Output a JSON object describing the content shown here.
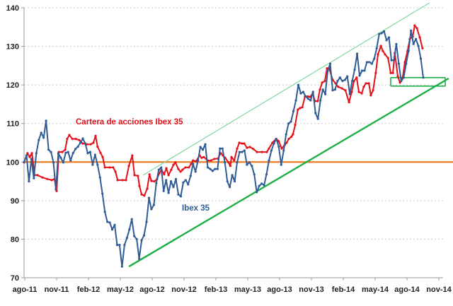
{
  "chart_data": {
    "type": "line",
    "title": "",
    "xlabel": "",
    "ylabel": "",
    "x_unit": "weeks since ago-11",
    "ylim": [
      70,
      140
    ],
    "xlim_weeks": [
      0,
      171
    ],
    "y_ticks": [
      70,
      80,
      90,
      100,
      110,
      120,
      130,
      140
    ],
    "x_ticks": [
      {
        "label": "ago-11",
        "month": 0
      },
      {
        "label": "nov-11",
        "month": 3
      },
      {
        "label": "feb-12",
        "month": 6
      },
      {
        "label": "may-12",
        "month": 9
      },
      {
        "label": "ago-12",
        "month": 12
      },
      {
        "label": "nov-12",
        "month": 15
      },
      {
        "label": "feb-13",
        "month": 18
      },
      {
        "label": "may-13",
        "month": 21
      },
      {
        "label": "ago-13",
        "month": 24
      },
      {
        "label": "nov-13",
        "month": 27
      },
      {
        "label": "feb-14",
        "month": 30
      },
      {
        "label": "may-14",
        "month": 33
      },
      {
        "label": "ago-14",
        "month": 36
      },
      {
        "label": "nov-14",
        "month": 39
      }
    ],
    "grid": "horizontal dotted",
    "colors": {
      "ibex": "#2F5C97",
      "cartera": "#E3101A",
      "base": "#F07B22",
      "support": "#1EAF45",
      "resistance": "#7ED89A",
      "box": "#1EAF45"
    },
    "series": [
      {
        "name": "Ibex 35",
        "label": "Ibex 35",
        "weekly_values": [
          100,
          101.7,
          95,
          100.8,
          95.8,
          102.3,
          105.7,
          107.6,
          106.3,
          110.7,
          103.2,
          102.6,
          99.9,
          92.9,
          102.3,
          101.1,
          99.9,
          102.4,
          102.6,
          100.4,
          102.3,
          103.4,
          104,
          105,
          106.1,
          104.8,
          102.3,
          102.6,
          99.3,
          101.9,
          99.3,
          96,
          91.8,
          87.1,
          84.5,
          84.3,
          82.5,
          83.7,
          78.5,
          78.5,
          72.9,
          78.5,
          80.3,
          82.5,
          85.2,
          80.8,
          80,
          74.9,
          79.7,
          81,
          84.5,
          90.7,
          87.8,
          88.9,
          94.5,
          98,
          98.6,
          92.5,
          95.3,
          92,
          95,
          93.5,
          95.6,
          91.6,
          91.1,
          94.7,
          95.3,
          94.2,
          96.4,
          99.5,
          97.5,
          100.4,
          103.9,
          103.2,
          104.6,
          98.6,
          98.2,
          97.7,
          98.2,
          98.2,
          103.5,
          103.5,
          99.9,
          95,
          93.5,
          96.6,
          95,
          99.9,
          102.6,
          102.6,
          103,
          99.3,
          99.9,
          99,
          96.8,
          92.2,
          93.8,
          94.4,
          94,
          96.8,
          100.4,
          103,
          104.8,
          106,
          104,
          99.3,
          103,
          107.2,
          110,
          110.5,
          113.2,
          116,
          120,
          117.8,
          118.2,
          117,
          116.4,
          116,
          118.2,
          112.7,
          111.2,
          116,
          118.8,
          117.6,
          123.7,
          125.5,
          118.6,
          118.8,
          121,
          121.9,
          121,
          121.3,
          122.2,
          117.6,
          121,
          124,
          128.1,
          122.4,
          123.7,
          123.7,
          125.9,
          125.9,
          125.5,
          126.8,
          129.5,
          133.2,
          133.4,
          133.9,
          131.6,
          132.3,
          126.4,
          126.4,
          130.6,
          125.5,
          121,
          121.9,
          125.5,
          128.8,
          134.1,
          130.6,
          131.9,
          130.1,
          126.8,
          121.9
        ]
      },
      {
        "name": "Cartera de acciones Ibex 35",
        "label": "Cartera de acciones Ibex 35",
        "points": [
          [
            0,
            99.9
          ],
          [
            1.4,
            102.3
          ],
          [
            2.3,
            101.3
          ],
          [
            3.2,
            102.3
          ],
          [
            4.3,
            96.6
          ],
          [
            5.5,
            96.6
          ],
          [
            7.5,
            96
          ],
          [
            9.5,
            95.6
          ],
          [
            11.3,
            95.3
          ],
          [
            12.4,
            95.6
          ],
          [
            13.3,
            92.5
          ],
          [
            14.2,
            102.6
          ],
          [
            15.6,
            102.6
          ],
          [
            16.8,
            103.2
          ],
          [
            17.6,
            106
          ],
          [
            18.5,
            107
          ],
          [
            19.7,
            106
          ],
          [
            21.1,
            106
          ],
          [
            22.5,
            105.7
          ],
          [
            24,
            104.8
          ],
          [
            25.7,
            104.6
          ],
          [
            27.2,
            104.6
          ],
          [
            28.3,
            105
          ],
          [
            29.2,
            106.8
          ],
          [
            30,
            104
          ],
          [
            31.2,
            102.4
          ],
          [
            32.1,
            101.3
          ],
          [
            33,
            98.6
          ],
          [
            35,
            98.6
          ],
          [
            36.4,
            98.6
          ],
          [
            37.3,
            97.5
          ],
          [
            38.2,
            95.3
          ],
          [
            40.2,
            95.3
          ],
          [
            41.6,
            95.3
          ],
          [
            42.8,
            99
          ],
          [
            44.2,
            101.7
          ],
          [
            45.1,
            96.6
          ],
          [
            46.5,
            96.4
          ],
          [
            47.1,
            93.8
          ],
          [
            48,
            91.6
          ],
          [
            49.1,
            91.3
          ],
          [
            50.3,
            93.1
          ],
          [
            51.2,
            96.8
          ],
          [
            52,
            95.1
          ],
          [
            53.2,
            95
          ],
          [
            54.3,
            95.6
          ],
          [
            55.2,
            97.1
          ],
          [
            56.1,
            98
          ],
          [
            57.2,
            96.8
          ],
          [
            58.1,
            98.4
          ],
          [
            59,
            96.6
          ],
          [
            60.1,
            98
          ],
          [
            61,
            99.3
          ],
          [
            61.8,
            99.9
          ],
          [
            63,
            98.2
          ],
          [
            63.9,
            97.5
          ],
          [
            64.7,
            98
          ],
          [
            65.9,
            98.6
          ],
          [
            67.3,
            98.6
          ],
          [
            68.2,
            99.5
          ],
          [
            69,
            100.4
          ],
          [
            70.2,
            100.2
          ],
          [
            71.7,
            101.7
          ],
          [
            72.5,
            101.1
          ],
          [
            73.4,
            101.3
          ],
          [
            74.9,
            100.4
          ],
          [
            76.3,
            100.4
          ],
          [
            77.7,
            100.8
          ],
          [
            79.2,
            100.9
          ],
          [
            80.3,
            102.3
          ],
          [
            81.2,
            101.7
          ],
          [
            82.1,
            101.1
          ],
          [
            83.5,
            99.9
          ],
          [
            84.2,
            99
          ],
          [
            84.7,
            101.3
          ],
          [
            85.8,
            100.4
          ],
          [
            87,
            103.5
          ],
          [
            87.9,
            105
          ],
          [
            89,
            104.8
          ],
          [
            89.9,
            104.8
          ],
          [
            91,
            103.7
          ],
          [
            92.2,
            103.9
          ],
          [
            93.6,
            103.4
          ],
          [
            95.1,
            102.6
          ],
          [
            97.1,
            102.6
          ],
          [
            99.1,
            102.6
          ],
          [
            100,
            103.5
          ],
          [
            101.4,
            105
          ],
          [
            102.9,
            106
          ],
          [
            104,
            105.4
          ],
          [
            105.2,
            103.5
          ],
          [
            106.4,
            104.4
          ],
          [
            107.2,
            105
          ],
          [
            108.1,
            106
          ],
          [
            109.2,
            106.6
          ],
          [
            109.8,
            107.2
          ],
          [
            110.7,
            109.6
          ],
          [
            111.8,
            113.6
          ],
          [
            112.7,
            114
          ],
          [
            113.6,
            114.2
          ],
          [
            114.7,
            117
          ],
          [
            115.9,
            117
          ],
          [
            116.8,
            116.9
          ],
          [
            117.9,
            117.8
          ],
          [
            118.8,
            115.8
          ],
          [
            119.9,
            115.8
          ],
          [
            120.8,
            118.8
          ],
          [
            121.7,
            120.6
          ],
          [
            122.8,
            121
          ],
          [
            123.7,
            124.3
          ],
          [
            124.6,
            124.3
          ],
          [
            126,
            121.3
          ],
          [
            127.2,
            120.4
          ],
          [
            128.3,
            119.5
          ],
          [
            129.8,
            119.1
          ],
          [
            131.2,
            118.6
          ],
          [
            132.7,
            115.5
          ],
          [
            133.8,
            118.2
          ],
          [
            134.7,
            121
          ],
          [
            135.8,
            121.9
          ],
          [
            136.7,
            118.2
          ],
          [
            137.9,
            117.8
          ],
          [
            138.7,
            119.5
          ],
          [
            139.6,
            120.4
          ],
          [
            140.8,
            120.4
          ],
          [
            141.6,
            117.3
          ],
          [
            142.5,
            118.6
          ],
          [
            143.6,
            123.1
          ],
          [
            144.5,
            127.9
          ],
          [
            145.7,
            130.1
          ],
          [
            146.5,
            128.8
          ],
          [
            147.4,
            127.9
          ],
          [
            148.6,
            127
          ],
          [
            149.7,
            123.1
          ],
          [
            150.6,
            123.1
          ],
          [
            151.4,
            128.3
          ],
          [
            152.6,
            122.2
          ],
          [
            153.5,
            120.6
          ],
          [
            154.6,
            121.9
          ],
          [
            155.5,
            125.9
          ],
          [
            156.6,
            128.8
          ],
          [
            157.5,
            131.9
          ],
          [
            158.7,
            132.5
          ],
          [
            159.5,
            135.4
          ],
          [
            160.4,
            134.7
          ],
          [
            161.6,
            132.3
          ],
          [
            162.7,
            129.5
          ]
        ]
      }
    ],
    "reference_lines": [
      {
        "name": "base-100",
        "from": [
          0,
          100
        ],
        "to": [
          175,
          100
        ]
      },
      {
        "name": "support-trendline",
        "from": [
          42.8,
          72.9
        ],
        "to": [
          173.4,
          121.7
        ]
      },
      {
        "name": "resistance-trendline",
        "from": [
          48.6,
          96.6
        ],
        "to": [
          165.6,
          141.3
        ]
      }
    ],
    "highlight_box": {
      "weeks": [
        149.7,
        172
      ],
      "values": [
        119.7,
        121.9
      ]
    }
  }
}
